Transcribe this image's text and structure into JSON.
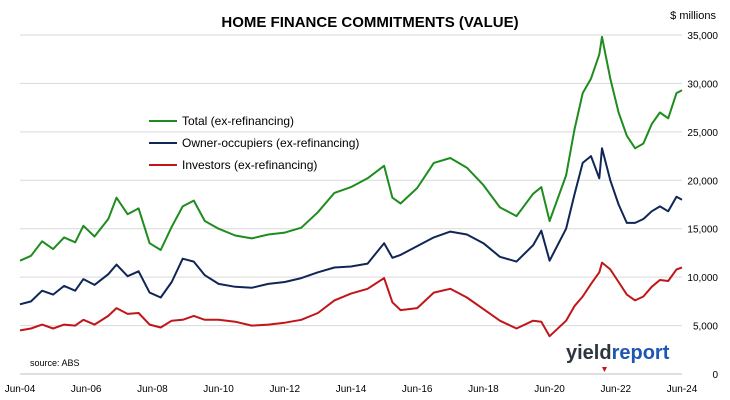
{
  "chart_data": {
    "type": "line",
    "title": "HOME FINANCE COMMITMENTS (VALUE)",
    "unit_label": "$ millions",
    "source": "source: ABS",
    "logo": "yieldreport",
    "ylim": [
      0,
      35000
    ],
    "y_ticks": [
      "0",
      "5,000",
      "10,000",
      "15,000",
      "20,000",
      "25,000",
      "30,000",
      "35,000"
    ],
    "x_range": [
      "2004-06",
      "2024-06"
    ],
    "x_ticks": [
      "Jun-04",
      "Jun-06",
      "Jun-08",
      "Jun-10",
      "Jun-12",
      "Jun-14",
      "Jun-16",
      "Jun-18",
      "Jun-20",
      "Jun-22",
      "Jun-24"
    ],
    "grid": "horizontal",
    "legend_placement": "center-left",
    "series": [
      {
        "name": "Total (ex-refinancing)",
        "color": "#1e8c1e",
        "points": [
          [
            "2004-06",
            11700
          ],
          [
            "2004-10",
            12200
          ],
          [
            "2005-02",
            13700
          ],
          [
            "2005-06",
            12900
          ],
          [
            "2005-10",
            14100
          ],
          [
            "2006-02",
            13600
          ],
          [
            "2006-05",
            15300
          ],
          [
            "2006-09",
            14200
          ],
          [
            "2007-02",
            16000
          ],
          [
            "2007-05",
            18200
          ],
          [
            "2007-09",
            16500
          ],
          [
            "2008-01",
            17100
          ],
          [
            "2008-05",
            13500
          ],
          [
            "2008-09",
            12800
          ],
          [
            "2009-01",
            15200
          ],
          [
            "2009-05",
            17300
          ],
          [
            "2009-09",
            17900
          ],
          [
            "2010-01",
            15800
          ],
          [
            "2010-06",
            15000
          ],
          [
            "2010-12",
            14300
          ],
          [
            "2011-06",
            14000
          ],
          [
            "2011-12",
            14400
          ],
          [
            "2012-06",
            14600
          ],
          [
            "2012-12",
            15100
          ],
          [
            "2013-06",
            16700
          ],
          [
            "2013-12",
            18700
          ],
          [
            "2014-06",
            19300
          ],
          [
            "2014-12",
            20200
          ],
          [
            "2015-06",
            21500
          ],
          [
            "2015-09",
            18200
          ],
          [
            "2015-12",
            17600
          ],
          [
            "2016-06",
            19200
          ],
          [
            "2016-12",
            21800
          ],
          [
            "2017-06",
            22300
          ],
          [
            "2017-12",
            21300
          ],
          [
            "2018-06",
            19500
          ],
          [
            "2018-12",
            17200
          ],
          [
            "2019-06",
            16300
          ],
          [
            "2019-12",
            18600
          ],
          [
            "2020-03",
            19300
          ],
          [
            "2020-06",
            15800
          ],
          [
            "2020-12",
            20500
          ],
          [
            "2021-03",
            25200
          ],
          [
            "2021-06",
            29000
          ],
          [
            "2021-09",
            30500
          ],
          [
            "2021-12",
            33000
          ],
          [
            "2022-01",
            34800
          ],
          [
            "2022-04",
            30500
          ],
          [
            "2022-07",
            27000
          ],
          [
            "2022-10",
            24600
          ],
          [
            "2023-01",
            23300
          ],
          [
            "2023-04",
            23800
          ],
          [
            "2023-07",
            25800
          ],
          [
            "2023-10",
            27000
          ],
          [
            "2024-01",
            26400
          ],
          [
            "2024-04",
            29000
          ],
          [
            "2024-06",
            29300
          ]
        ]
      },
      {
        "name": "Owner-occupiers (ex-refinancing)",
        "color": "#0f2657",
        "points": [
          [
            "2004-06",
            7200
          ],
          [
            "2004-10",
            7500
          ],
          [
            "2005-02",
            8600
          ],
          [
            "2005-06",
            8200
          ],
          [
            "2005-10",
            9100
          ],
          [
            "2006-02",
            8600
          ],
          [
            "2006-05",
            9800
          ],
          [
            "2006-09",
            9200
          ],
          [
            "2007-02",
            10300
          ],
          [
            "2007-05",
            11300
          ],
          [
            "2007-09",
            10100
          ],
          [
            "2008-01",
            10600
          ],
          [
            "2008-05",
            8400
          ],
          [
            "2008-09",
            7900
          ],
          [
            "2009-01",
            9500
          ],
          [
            "2009-05",
            11900
          ],
          [
            "2009-09",
            11600
          ],
          [
            "2010-01",
            10200
          ],
          [
            "2010-06",
            9300
          ],
          [
            "2010-12",
            9000
          ],
          [
            "2011-06",
            8900
          ],
          [
            "2011-12",
            9300
          ],
          [
            "2012-06",
            9500
          ],
          [
            "2012-12",
            9900
          ],
          [
            "2013-06",
            10500
          ],
          [
            "2013-12",
            11000
          ],
          [
            "2014-06",
            11100
          ],
          [
            "2014-12",
            11400
          ],
          [
            "2015-06",
            13500
          ],
          [
            "2015-09",
            12000
          ],
          [
            "2015-12",
            12300
          ],
          [
            "2016-06",
            13200
          ],
          [
            "2016-12",
            14100
          ],
          [
            "2017-06",
            14700
          ],
          [
            "2017-12",
            14400
          ],
          [
            "2018-06",
            13500
          ],
          [
            "2018-12",
            12100
          ],
          [
            "2019-06",
            11600
          ],
          [
            "2019-12",
            13300
          ],
          [
            "2020-03",
            14800
          ],
          [
            "2020-06",
            11700
          ],
          [
            "2020-12",
            15000
          ],
          [
            "2021-03",
            18500
          ],
          [
            "2021-06",
            21800
          ],
          [
            "2021-09",
            22500
          ],
          [
            "2021-12",
            20200
          ],
          [
            "2022-01",
            23300
          ],
          [
            "2022-04",
            20000
          ],
          [
            "2022-07",
            17500
          ],
          [
            "2022-10",
            15600
          ],
          [
            "2023-01",
            15600
          ],
          [
            "2023-04",
            16000
          ],
          [
            "2023-07",
            16800
          ],
          [
            "2023-10",
            17300
          ],
          [
            "2024-01",
            16800
          ],
          [
            "2024-04",
            18300
          ],
          [
            "2024-06",
            18000
          ]
        ]
      },
      {
        "name": "Investors (ex-refinancing)",
        "color": "#c0161a",
        "points": [
          [
            "2004-06",
            4500
          ],
          [
            "2004-10",
            4700
          ],
          [
            "2005-02",
            5100
          ],
          [
            "2005-06",
            4700
          ],
          [
            "2005-10",
            5100
          ],
          [
            "2006-02",
            5000
          ],
          [
            "2006-05",
            5600
          ],
          [
            "2006-09",
            5100
          ],
          [
            "2007-02",
            6000
          ],
          [
            "2007-05",
            6800
          ],
          [
            "2007-09",
            6200
          ],
          [
            "2008-01",
            6300
          ],
          [
            "2008-05",
            5100
          ],
          [
            "2008-09",
            4800
          ],
          [
            "2009-01",
            5500
          ],
          [
            "2009-05",
            5600
          ],
          [
            "2009-09",
            6000
          ],
          [
            "2010-01",
            5600
          ],
          [
            "2010-06",
            5600
          ],
          [
            "2010-12",
            5400
          ],
          [
            "2011-06",
            5000
          ],
          [
            "2011-12",
            5100
          ],
          [
            "2012-06",
            5300
          ],
          [
            "2012-12",
            5600
          ],
          [
            "2013-06",
            6300
          ],
          [
            "2013-12",
            7600
          ],
          [
            "2014-06",
            8300
          ],
          [
            "2014-12",
            8800
          ],
          [
            "2015-06",
            9900
          ],
          [
            "2015-09",
            7400
          ],
          [
            "2015-12",
            6600
          ],
          [
            "2016-06",
            6800
          ],
          [
            "2016-12",
            8400
          ],
          [
            "2017-06",
            8800
          ],
          [
            "2017-12",
            7900
          ],
          [
            "2018-06",
            6700
          ],
          [
            "2018-12",
            5500
          ],
          [
            "2019-06",
            4700
          ],
          [
            "2019-12",
            5500
          ],
          [
            "2020-03",
            5400
          ],
          [
            "2020-06",
            3900
          ],
          [
            "2020-12",
            5500
          ],
          [
            "2021-03",
            7000
          ],
          [
            "2021-06",
            8000
          ],
          [
            "2021-09",
            9300
          ],
          [
            "2021-12",
            10500
          ],
          [
            "2022-01",
            11500
          ],
          [
            "2022-04",
            10800
          ],
          [
            "2022-07",
            9500
          ],
          [
            "2022-10",
            8200
          ],
          [
            "2023-01",
            7600
          ],
          [
            "2023-04",
            8000
          ],
          [
            "2023-07",
            9000
          ],
          [
            "2023-10",
            9700
          ],
          [
            "2024-01",
            9600
          ],
          [
            "2024-04",
            10800
          ],
          [
            "2024-06",
            11000
          ]
        ]
      }
    ]
  }
}
